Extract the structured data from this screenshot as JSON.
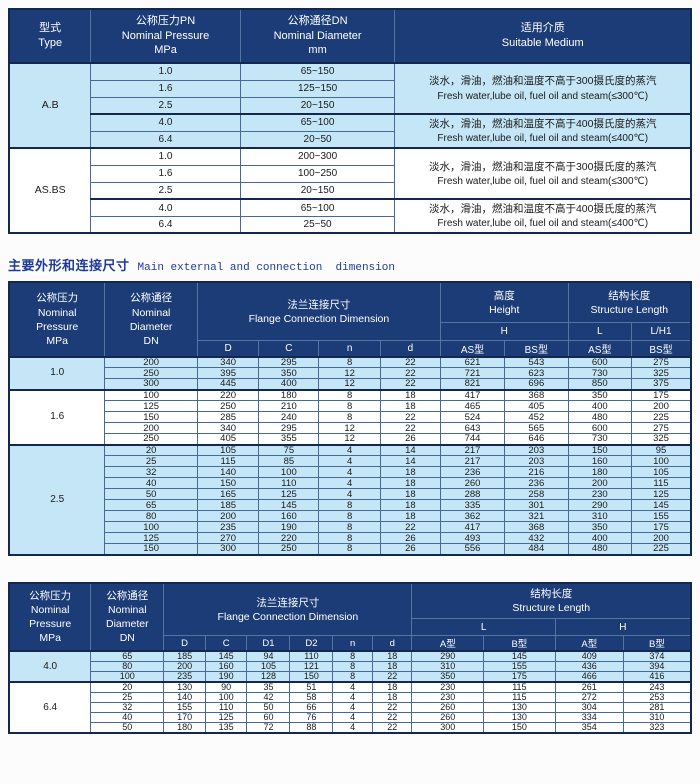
{
  "colors": {
    "header_bg": "#1c3c78",
    "header_text": "#ffffff",
    "band_blue": "#c5e6f6",
    "band_white": "#ffffff",
    "border_dark": "#14284f",
    "grid_line": "#46699a",
    "header_grid": "#54759f",
    "title_color": "#1d3a9a",
    "data_text": "#1a1a1a"
  },
  "table1": {
    "headers": {
      "type": [
        "型式",
        "Type"
      ],
      "pressure": [
        "公称压力PN",
        "Nominal Pressure",
        "MPa"
      ],
      "diameter": [
        "公称通径DN",
        "Nominal Diameter",
        "mm"
      ],
      "medium": [
        "适用介质",
        "Suitable Medium"
      ]
    },
    "groups": [
      {
        "type": "A.B",
        "shade": "blue",
        "subgroups": [
          {
            "rows": [
              [
                "1.0",
                "65~150"
              ],
              [
                "1.6",
                "125~150"
              ],
              [
                "2.5",
                "20~150"
              ]
            ],
            "medium_zh": "淡水，滑油，燃油和温度不高于300摄氏度的蒸汽",
            "medium_en": "Fresh water,lube oil, fuel oil and steam(≤300℃)"
          },
          {
            "rows": [
              [
                "4.0",
                "65~100"
              ],
              [
                "6.4",
                "20~50"
              ]
            ],
            "medium_zh": "淡水，滑油，燃油和温度不高于400摄氏度的蒸汽",
            "medium_en": "Fresh water,lube oil, fuel oil and steam(≤400℃)"
          }
        ]
      },
      {
        "type": "AS.BS",
        "shade": "white",
        "subgroups": [
          {
            "rows": [
              [
                "1.0",
                "200~300"
              ],
              [
                "1.6",
                "100~250"
              ],
              [
                "2.5",
                "20~150"
              ]
            ],
            "medium_zh": "淡水，滑油，燃油和温度不高于300摄氏度的蒸汽",
            "medium_en": "Fresh water,lube oil, fuel oil and steam(≤300℃)"
          },
          {
            "rows": [
              [
                "4.0",
                "65~100"
              ],
              [
                "6.4",
                "25~50"
              ]
            ],
            "medium_zh": "淡水，滑油，燃油和温度不高于400摄氏度的蒸汽",
            "medium_en": "Fresh water,lube oil, fuel oil and steam(≤400℃)"
          }
        ]
      }
    ]
  },
  "section_title": {
    "zh": "主要外形和连接尺寸",
    "en": "Main external and connection  dimension"
  },
  "table2": {
    "headers": {
      "pressure": [
        "公称压力",
        "Nominal",
        "Pressure",
        "MPa"
      ],
      "diameter": [
        "公称通径",
        "Nominal",
        "Diameter",
        "DN"
      ],
      "flange": [
        "法兰连接尺寸",
        "Flange Connection Dimension"
      ],
      "height": [
        "高度",
        "Height"
      ],
      "structure": [
        "结构长度",
        "Structure Length"
      ],
      "h": "H",
      "l": "L",
      "lh1": "L/H1",
      "cols": [
        "D",
        "C",
        "n",
        "d",
        "AS型",
        "BS型",
        "AS型",
        "BS型"
      ]
    },
    "groups": [
      {
        "pressure": "1.0",
        "shade": "blue",
        "rows": [
          [
            200,
            340,
            295,
            8,
            22,
            621,
            543,
            600,
            275
          ],
          [
            250,
            395,
            350,
            12,
            22,
            721,
            623,
            730,
            325
          ],
          [
            300,
            445,
            400,
            12,
            22,
            821,
            696,
            850,
            375
          ]
        ]
      },
      {
        "pressure": "1.6",
        "shade": "white",
        "rows": [
          [
            100,
            220,
            180,
            8,
            18,
            417,
            368,
            350,
            175
          ],
          [
            125,
            250,
            210,
            8,
            18,
            465,
            405,
            400,
            200
          ],
          [
            150,
            285,
            240,
            8,
            22,
            524,
            452,
            480,
            225
          ],
          [
            200,
            340,
            295,
            12,
            22,
            643,
            565,
            600,
            275
          ],
          [
            250,
            405,
            355,
            12,
            26,
            744,
            646,
            730,
            325
          ]
        ]
      },
      {
        "pressure": "2.5",
        "shade": "blue",
        "rows": [
          [
            20,
            105,
            75,
            4,
            14,
            217,
            203,
            150,
            95
          ],
          [
            25,
            115,
            85,
            4,
            14,
            217,
            203,
            160,
            100
          ],
          [
            32,
            140,
            100,
            4,
            18,
            236,
            216,
            180,
            105
          ],
          [
            40,
            150,
            110,
            4,
            18,
            260,
            236,
            200,
            115
          ],
          [
            50,
            165,
            125,
            4,
            18,
            288,
            258,
            230,
            125
          ],
          [
            65,
            185,
            145,
            8,
            18,
            335,
            301,
            290,
            145
          ],
          [
            80,
            200,
            160,
            8,
            18,
            362,
            321,
            310,
            155
          ],
          [
            100,
            235,
            190,
            8,
            22,
            417,
            368,
            350,
            175
          ],
          [
            125,
            270,
            220,
            8,
            26,
            493,
            432,
            400,
            200
          ],
          [
            150,
            300,
            250,
            8,
            26,
            556,
            484,
            480,
            225
          ]
        ]
      }
    ]
  },
  "table3": {
    "headers": {
      "pressure": [
        "公称压力",
        "Nominal",
        "Pressure",
        "MPa"
      ],
      "diameter": [
        "公称通径",
        "Nominal",
        "Diameter",
        "DN"
      ],
      "flange": [
        "法兰连接尺寸",
        "Flange Connection Dimension"
      ],
      "structure": [
        "结构长度",
        "Structure Length"
      ],
      "l": "L",
      "h": "H",
      "cols": [
        "D",
        "C",
        "D1",
        "D2",
        "n",
        "d",
        "A型",
        "B型",
        "A型",
        "B型"
      ]
    },
    "groups": [
      {
        "pressure": "4.0",
        "shade": "blue",
        "rows": [
          [
            65,
            185,
            145,
            94,
            110,
            8,
            18,
            290,
            145,
            409,
            374
          ],
          [
            80,
            200,
            160,
            105,
            121,
            8,
            18,
            310,
            155,
            436,
            394
          ],
          [
            100,
            235,
            190,
            128,
            150,
            8,
            22,
            350,
            175,
            466,
            416
          ]
        ]
      },
      {
        "pressure": "6.4",
        "shade": "white",
        "rows": [
          [
            20,
            130,
            90,
            35,
            51,
            4,
            18,
            230,
            115,
            261,
            243
          ],
          [
            25,
            140,
            100,
            42,
            58,
            4,
            18,
            230,
            115,
            272,
            253
          ],
          [
            32,
            155,
            110,
            50,
            66,
            4,
            22,
            260,
            130,
            304,
            281
          ],
          [
            40,
            170,
            125,
            60,
            76,
            4,
            22,
            260,
            130,
            334,
            310
          ],
          [
            50,
            180,
            135,
            72,
            88,
            4,
            22,
            300,
            150,
            354,
            323
          ]
        ]
      }
    ]
  }
}
